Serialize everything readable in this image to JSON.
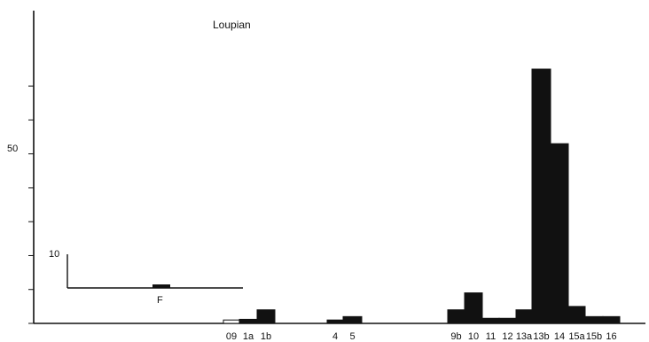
{
  "chart_data": [
    {
      "type": "bar",
      "title": "Loupian",
      "xlabel": "",
      "ylabel": "",
      "ylim": [
        0,
        75
      ],
      "y_ticks": [
        0,
        10,
        20,
        30,
        40,
        50,
        60,
        70
      ],
      "y_tick_labels": [
        {
          "value": 50,
          "text": "50"
        }
      ],
      "categories": [
        "09",
        "1a",
        "1b",
        "4",
        "5",
        "9b",
        "10",
        "11",
        "12",
        "13a",
        "13b",
        "14",
        "15a",
        "15b",
        "16"
      ],
      "values": [
        1,
        1.2,
        4,
        1,
        2,
        4,
        9,
        1.5,
        1.5,
        4,
        75,
        53,
        5,
        2,
        2
      ],
      "fills": [
        "#ffffff",
        "#111111",
        "#111111",
        "#111111",
        "#111111",
        "#111111",
        "#111111",
        "#111111",
        "#111111",
        "#111111",
        "#111111",
        "#111111",
        "#111111",
        "#111111",
        "#111111"
      ],
      "grid": false
    },
    {
      "type": "bar",
      "title": "",
      "xlabel": "F",
      "ylabel": "",
      "y_tick_labels": [
        {
          "value": 10,
          "text": "10"
        }
      ],
      "categories": [
        "F"
      ],
      "values": [
        1
      ],
      "grid": false
    }
  ]
}
